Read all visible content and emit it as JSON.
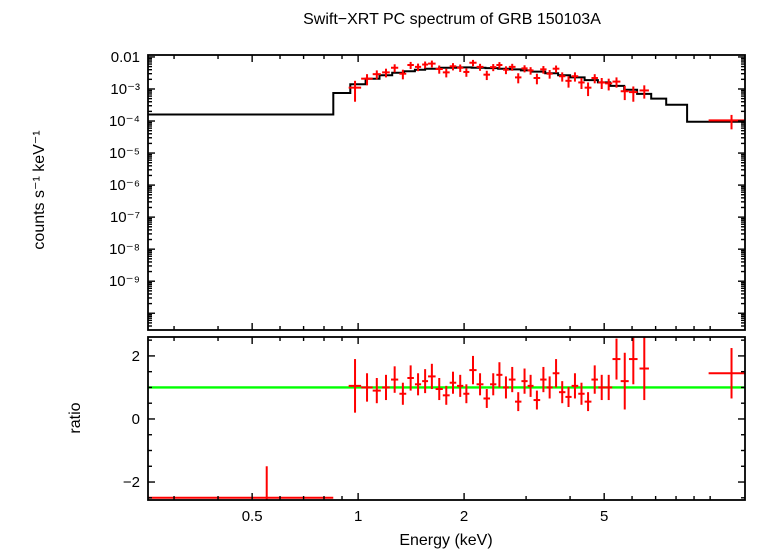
{
  "chart_data": [
    {
      "type": "scatter",
      "panel": "spectrum",
      "title": "Swift−XRT PC spectrum of GRB 150103A",
      "xlabel": "Energy (keV)",
      "ylabel": "counts s⁻¹ keV⁻¹",
      "xscale": "log",
      "yscale": "log",
      "xlim": [
        0.253,
        12.56
      ],
      "ylim": [
        3e-11,
        0.0115
      ],
      "x_major_ticks": [
        0.5,
        1,
        2,
        5
      ],
      "x_major_labels": [
        "0.5",
        "1",
        "2",
        "5"
      ],
      "x_minor_ticks": [
        0.3,
        0.4,
        0.6,
        0.7,
        0.8,
        0.9,
        3,
        4,
        6,
        7,
        8,
        9,
        10
      ],
      "y_major_ticks": [
        0.01,
        0.001,
        0.0001,
        1e-05,
        1e-06,
        1e-07,
        1e-08,
        1e-09
      ],
      "y_major_labels": [
        "0.01",
        "10⁻³",
        "10⁻⁴",
        "10⁻⁵",
        "10⁻⁶",
        "10⁻⁷",
        "10⁻⁸",
        "10⁻⁹"
      ],
      "data_color": "#ff0000",
      "model_color": "#000000",
      "model_steps": [
        [
          0.253,
          0.85,
          0.00016
        ],
        [
          0.85,
          0.95,
          0.00075
        ],
        [
          0.95,
          1.05,
          0.0014
        ],
        [
          1.05,
          1.15,
          0.0021
        ],
        [
          1.15,
          1.25,
          0.0027
        ],
        [
          1.25,
          1.35,
          0.0032
        ],
        [
          1.35,
          1.45,
          0.0036
        ],
        [
          1.45,
          1.55,
          0.004
        ],
        [
          1.55,
          1.7,
          0.0043
        ],
        [
          1.7,
          1.9,
          0.0046
        ],
        [
          1.9,
          2.1,
          0.0047
        ],
        [
          2.1,
          2.3,
          0.0046
        ],
        [
          2.3,
          2.5,
          0.0045
        ],
        [
          2.5,
          2.7,
          0.0043
        ],
        [
          2.7,
          2.9,
          0.0041
        ],
        [
          2.9,
          3.1,
          0.0038
        ],
        [
          3.1,
          3.4,
          0.0035
        ],
        [
          3.4,
          3.7,
          0.0031
        ],
        [
          3.7,
          4.0,
          0.0027
        ],
        [
          4.0,
          4.4,
          0.0023
        ],
        [
          4.4,
          4.8,
          0.0019
        ],
        [
          4.8,
          5.2,
          0.0016
        ],
        [
          5.2,
          5.7,
          0.00125
        ],
        [
          5.7,
          6.2,
          0.00095
        ],
        [
          6.2,
          6.8,
          0.0007
        ],
        [
          6.8,
          7.5,
          0.0005
        ],
        [
          7.5,
          8.6,
          0.00032
        ],
        [
          8.6,
          12.56,
          9.5e-05
        ]
      ],
      "points": [
        [
          0.98,
          0.04,
          0.0011,
          0.0007
        ],
        [
          1.06,
          0.04,
          0.0021,
          0.0008
        ],
        [
          1.13,
          0.03,
          0.0029,
          0.0009
        ],
        [
          1.2,
          0.03,
          0.0033,
          0.001
        ],
        [
          1.27,
          0.03,
          0.0046,
          0.0013
        ],
        [
          1.34,
          0.03,
          0.003,
          0.001
        ],
        [
          1.41,
          0.03,
          0.0056,
          0.0014
        ],
        [
          1.48,
          0.03,
          0.0049,
          0.0013
        ],
        [
          1.55,
          0.03,
          0.0058,
          0.0014
        ],
        [
          1.62,
          0.04,
          0.0062,
          0.0015
        ],
        [
          1.7,
          0.04,
          0.0042,
          0.0012
        ],
        [
          1.78,
          0.04,
          0.0033,
          0.001
        ],
        [
          1.86,
          0.04,
          0.0051,
          0.0013
        ],
        [
          1.95,
          0.04,
          0.0046,
          0.0012
        ],
        [
          2.03,
          0.04,
          0.0034,
          0.001
        ],
        [
          2.12,
          0.05,
          0.0066,
          0.0015
        ],
        [
          2.22,
          0.05,
          0.0049,
          0.0012
        ],
        [
          2.32,
          0.05,
          0.0028,
          0.0009
        ],
        [
          2.42,
          0.05,
          0.0048,
          0.0012
        ],
        [
          2.52,
          0.05,
          0.0056,
          0.0013
        ],
        [
          2.63,
          0.05,
          0.004,
          0.0011
        ],
        [
          2.74,
          0.06,
          0.0049,
          0.0012
        ],
        [
          2.85,
          0.06,
          0.0023,
          0.0008
        ],
        [
          2.97,
          0.06,
          0.0044,
          0.0011
        ],
        [
          3.09,
          0.06,
          0.0038,
          0.001
        ],
        [
          3.22,
          0.07,
          0.0022,
          0.0008
        ],
        [
          3.36,
          0.07,
          0.0041,
          0.0011
        ],
        [
          3.5,
          0.07,
          0.003,
          0.0009
        ],
        [
          3.65,
          0.08,
          0.0043,
          0.0011
        ],
        [
          3.8,
          0.08,
          0.0025,
          0.0008
        ],
        [
          3.96,
          0.08,
          0.0018,
          0.0007
        ],
        [
          4.13,
          0.09,
          0.0025,
          0.0008
        ],
        [
          4.31,
          0.09,
          0.0016,
          0.0006
        ],
        [
          4.5,
          0.1,
          0.0011,
          0.0005
        ],
        [
          4.7,
          0.1,
          0.0022,
          0.0007
        ],
        [
          4.92,
          0.11,
          0.0016,
          0.0006
        ],
        [
          5.15,
          0.12,
          0.0015,
          0.0006
        ],
        [
          5.42,
          0.14,
          0.0017,
          0.0006
        ],
        [
          5.72,
          0.15,
          0.00085,
          0.0004
        ],
        [
          6.05,
          0.17,
          0.0008,
          0.0004
        ],
        [
          6.5,
          0.2,
          0.0009,
          0.0004
        ],
        [
          11.5,
          1.6,
          0.000105,
          5e-05
        ]
      ]
    },
    {
      "type": "scatter",
      "panel": "ratio",
      "xlabel": "Energy (keV)",
      "ylabel": "ratio",
      "xscale": "log",
      "yscale": "linear",
      "xlim": [
        0.253,
        12.56
      ],
      "ylim": [
        -2.57,
        2.6
      ],
      "y_major_ticks": [
        -2,
        0,
        2
      ],
      "y_major_labels": [
        "−2",
        "0",
        "2"
      ],
      "y_minor_ticks": [
        -2.5,
        -1.5,
        -1,
        -0.5,
        0.5,
        1,
        1.5,
        2.5
      ],
      "data_color": "#ff0000",
      "reference_line": {
        "y": 1,
        "color": "#00ff00"
      },
      "points": [
        [
          0.55,
          0.3,
          -2.5,
          1.0
        ],
        [
          0.98,
          0.04,
          1.05,
          0.85
        ],
        [
          1.06,
          0.04,
          1.0,
          0.45
        ],
        [
          1.13,
          0.03,
          0.9,
          0.4
        ],
        [
          1.2,
          0.03,
          1.0,
          0.4
        ],
        [
          1.27,
          0.03,
          1.25,
          0.42
        ],
        [
          1.34,
          0.03,
          0.8,
          0.35
        ],
        [
          1.41,
          0.03,
          1.3,
          0.4
        ],
        [
          1.48,
          0.03,
          1.1,
          0.35
        ],
        [
          1.55,
          0.03,
          1.2,
          0.38
        ],
        [
          1.62,
          0.04,
          1.35,
          0.4
        ],
        [
          1.7,
          0.04,
          0.95,
          0.35
        ],
        [
          1.78,
          0.04,
          0.75,
          0.3
        ],
        [
          1.86,
          0.04,
          1.15,
          0.35
        ],
        [
          1.95,
          0.04,
          1.05,
          0.35
        ],
        [
          2.03,
          0.04,
          0.8,
          0.3
        ],
        [
          2.12,
          0.05,
          1.55,
          0.45
        ],
        [
          2.22,
          0.05,
          1.1,
          0.35
        ],
        [
          2.32,
          0.05,
          0.65,
          0.3
        ],
        [
          2.42,
          0.05,
          1.1,
          0.35
        ],
        [
          2.52,
          0.05,
          1.4,
          0.4
        ],
        [
          2.63,
          0.05,
          1.0,
          0.35
        ],
        [
          2.74,
          0.06,
          1.25,
          0.4
        ],
        [
          2.85,
          0.06,
          0.55,
          0.3
        ],
        [
          2.97,
          0.06,
          1.2,
          0.4
        ],
        [
          3.09,
          0.06,
          1.05,
          0.35
        ],
        [
          3.22,
          0.07,
          0.6,
          0.3
        ],
        [
          3.36,
          0.07,
          1.25,
          0.4
        ],
        [
          3.5,
          0.07,
          1.0,
          0.35
        ],
        [
          3.65,
          0.08,
          1.45,
          0.45
        ],
        [
          3.8,
          0.08,
          0.85,
          0.35
        ],
        [
          3.96,
          0.08,
          0.7,
          0.32
        ],
        [
          4.13,
          0.09,
          1.05,
          0.4
        ],
        [
          4.31,
          0.09,
          0.8,
          0.35
        ],
        [
          4.5,
          0.1,
          0.55,
          0.3
        ],
        [
          4.7,
          0.1,
          1.25,
          0.45
        ],
        [
          4.92,
          0.11,
          1.0,
          0.4
        ],
        [
          5.15,
          0.12,
          1.0,
          0.4
        ],
        [
          5.42,
          0.14,
          1.9,
          0.65
        ],
        [
          5.72,
          0.15,
          1.2,
          0.9
        ],
        [
          6.05,
          0.17,
          1.9,
          0.8
        ],
        [
          6.5,
          0.2,
          1.6,
          1.0
        ],
        [
          11.5,
          1.6,
          1.45,
          0.8
        ]
      ]
    }
  ]
}
